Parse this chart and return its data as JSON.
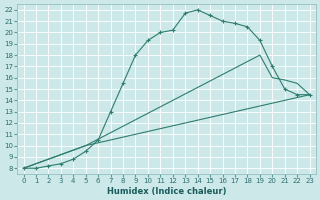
{
  "xlabel": "Humidex (Indice chaleur)",
  "bg_color": "#cce8e8",
  "grid_color": "#ffffff",
  "line_color": "#2e7d6e",
  "xlim": [
    -0.5,
    23.5
  ],
  "ylim": [
    7.5,
    22.5
  ],
  "xticks": [
    0,
    1,
    2,
    3,
    4,
    5,
    6,
    7,
    8,
    9,
    10,
    11,
    12,
    13,
    14,
    15,
    16,
    17,
    18,
    19,
    20,
    21,
    22,
    23
  ],
  "yticks": [
    8,
    9,
    10,
    11,
    12,
    13,
    14,
    15,
    16,
    17,
    18,
    19,
    20,
    21,
    22
  ],
  "line1_x": [
    0,
    1,
    2,
    3,
    4,
    5,
    6,
    7,
    8,
    9,
    10,
    11,
    12,
    13,
    14,
    15,
    16,
    17,
    18,
    19,
    20,
    21,
    22,
    23
  ],
  "line1_y": [
    8,
    8,
    8.2,
    8.4,
    8.8,
    9.5,
    10.5,
    13,
    15.5,
    18,
    19.3,
    20,
    20.2,
    21.7,
    22,
    21.5,
    21,
    20.8,
    20.5,
    19.3,
    17.0,
    15.0,
    14.5,
    14.5
  ],
  "line2_x": [
    0,
    5,
    23
  ],
  "line2_y": [
    8,
    10,
    14.5
  ],
  "line3_x": [
    0,
    5,
    19,
    20,
    21,
    22,
    23
  ],
  "line3_y": [
    8,
    10,
    18,
    16,
    15.8,
    15.5,
    14.5
  ]
}
